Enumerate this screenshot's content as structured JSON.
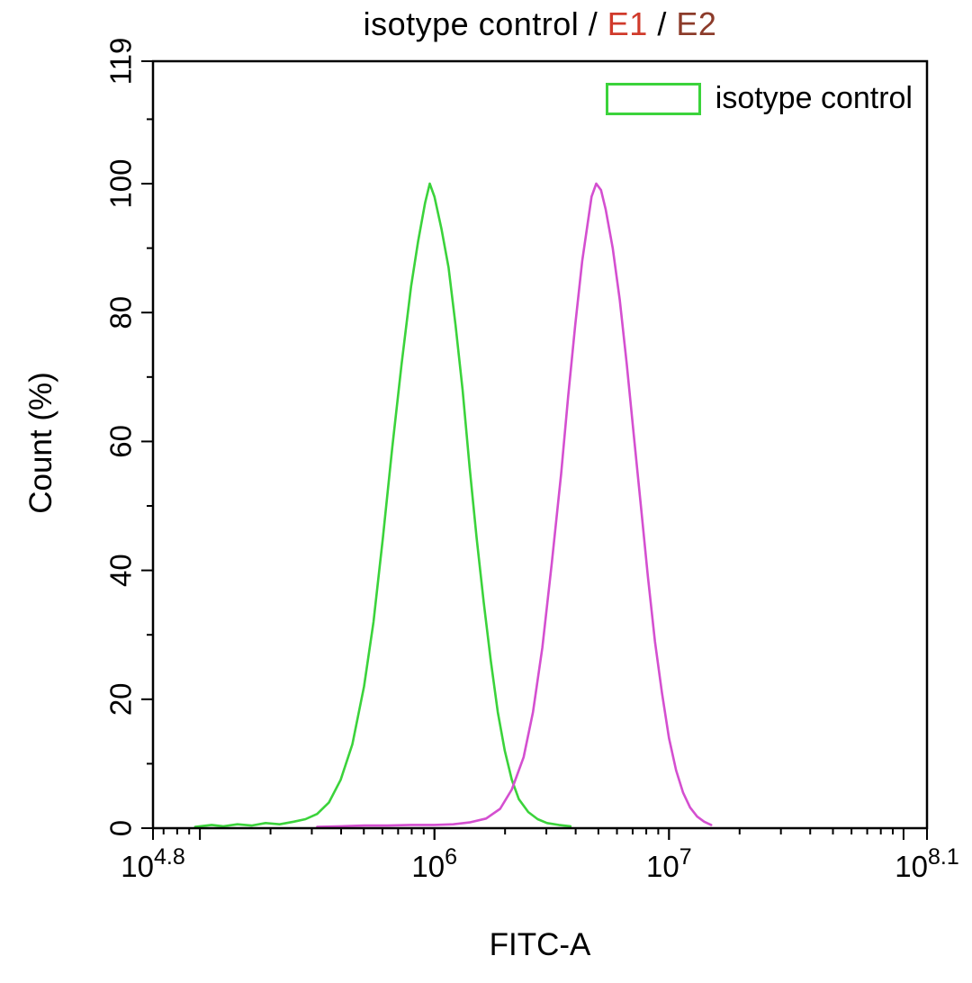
{
  "figure": {
    "title_parts": [
      {
        "text": "isotype control",
        "color": "#000000"
      },
      {
        "text": " / ",
        "color": "#000000"
      },
      {
        "text": "E1",
        "color": "#d03a2b"
      },
      {
        "text": " / ",
        "color": "#000000"
      },
      {
        "text": "E2",
        "color": "#8c3b2a"
      }
    ]
  },
  "chart_data": {
    "type": "line",
    "title": "isotype control / E1 / E2",
    "xlabel": "FITC-A",
    "ylabel": "Count (%)",
    "x_scale": "log10",
    "xlim_log": [
      4.8,
      8.1
    ],
    "ylim": [
      0,
      119
    ],
    "grid": false,
    "legend_position": "top-right",
    "y_major_ticks": [
      0,
      20,
      40,
      60,
      80,
      100
    ],
    "y_axis_max_label": "119",
    "x_labeled_ticks": [
      {
        "log": 4.8,
        "base": "10",
        "exp": "4.8"
      },
      {
        "log": 6,
        "base": "10",
        "exp": "6"
      },
      {
        "log": 7,
        "base": "10",
        "exp": "7"
      },
      {
        "log": 8.1,
        "base": "10",
        "exp": "8.1"
      }
    ],
    "legend": {
      "label": "isotype control",
      "swatch_color": "#3bd33b"
    },
    "series": [
      {
        "name": "isotype control",
        "color": "#3bd33b",
        "peak_x_log": 5.98,
        "peak_y": 100,
        "points": [
          [
            4.98,
            0.2
          ],
          [
            5.05,
            0.5
          ],
          [
            5.1,
            0.3
          ],
          [
            5.16,
            0.6
          ],
          [
            5.22,
            0.4
          ],
          [
            5.28,
            0.8
          ],
          [
            5.34,
            0.6
          ],
          [
            5.4,
            1.0
          ],
          [
            5.45,
            1.4
          ],
          [
            5.5,
            2.2
          ],
          [
            5.55,
            4.0
          ],
          [
            5.6,
            7.5
          ],
          [
            5.65,
            13
          ],
          [
            5.7,
            22
          ],
          [
            5.74,
            32
          ],
          [
            5.78,
            45
          ],
          [
            5.82,
            59
          ],
          [
            5.86,
            72
          ],
          [
            5.9,
            84
          ],
          [
            5.93,
            91
          ],
          [
            5.96,
            97
          ],
          [
            5.98,
            100
          ],
          [
            6.0,
            98
          ],
          [
            6.03,
            93
          ],
          [
            6.06,
            87
          ],
          [
            6.09,
            78
          ],
          [
            6.12,
            68
          ],
          [
            6.15,
            56
          ],
          [
            6.18,
            45
          ],
          [
            6.21,
            35
          ],
          [
            6.24,
            26
          ],
          [
            6.27,
            18
          ],
          [
            6.3,
            12
          ],
          [
            6.33,
            7.5
          ],
          [
            6.36,
            4.5
          ],
          [
            6.4,
            2.5
          ],
          [
            6.44,
            1.4
          ],
          [
            6.48,
            0.8
          ],
          [
            6.53,
            0.5
          ],
          [
            6.58,
            0.3
          ]
        ]
      },
      {
        "name": "E1 / E2",
        "color": "#d44fd0",
        "peak_x_log": 6.69,
        "peak_y": 100,
        "points": [
          [
            5.5,
            0.2
          ],
          [
            5.6,
            0.3
          ],
          [
            5.7,
            0.4
          ],
          [
            5.8,
            0.4
          ],
          [
            5.9,
            0.5
          ],
          [
            6.0,
            0.5
          ],
          [
            6.08,
            0.6
          ],
          [
            6.15,
            0.9
          ],
          [
            6.22,
            1.5
          ],
          [
            6.28,
            3.0
          ],
          [
            6.33,
            6.0
          ],
          [
            6.38,
            11
          ],
          [
            6.42,
            18
          ],
          [
            6.46,
            28
          ],
          [
            6.5,
            41
          ],
          [
            6.54,
            55
          ],
          [
            6.57,
            67
          ],
          [
            6.6,
            78
          ],
          [
            6.63,
            88
          ],
          [
            6.65,
            93
          ],
          [
            6.67,
            98
          ],
          [
            6.69,
            100
          ],
          [
            6.71,
            99
          ],
          [
            6.73,
            96
          ],
          [
            6.76,
            90
          ],
          [
            6.79,
            82
          ],
          [
            6.82,
            72
          ],
          [
            6.85,
            61
          ],
          [
            6.88,
            50
          ],
          [
            6.91,
            39
          ],
          [
            6.94,
            29
          ],
          [
            6.97,
            21
          ],
          [
            7.0,
            14
          ],
          [
            7.03,
            9
          ],
          [
            7.06,
            5.5
          ],
          [
            7.09,
            3.2
          ],
          [
            7.12,
            1.8
          ],
          [
            7.15,
            1.0
          ],
          [
            7.18,
            0.5
          ]
        ]
      }
    ]
  }
}
